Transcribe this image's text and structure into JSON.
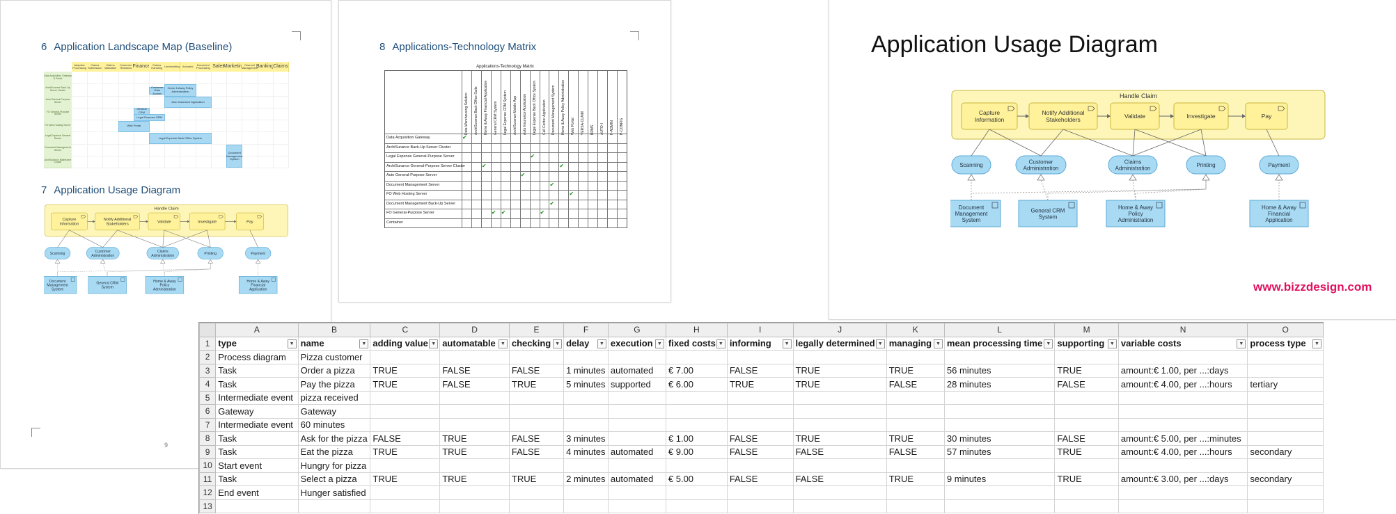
{
  "doc": {
    "page1": {
      "heading6": {
        "num": "6",
        "text": "Application Landscape Map (Baseline)"
      },
      "heading7": {
        "num": "7",
        "text": "Application Usage Diagram"
      },
      "page_number": "9"
    },
    "page2": {
      "heading8": {
        "num": "8",
        "text": "Applications-Technology Matrix"
      }
    },
    "slide": {
      "title": "Application Usage Diagram",
      "watermark": "www.bizzdesign.com"
    }
  },
  "landscape": {
    "columns": [
      "Adaptive Processing",
      "Claims Submission",
      "Claims Validation",
      "Customer Relations",
      "Finance",
      "Claims Handling",
      "Underwriting",
      "Actuarial",
      "Document Processing",
      "Sales",
      "Marketing",
      "Channel Management",
      "Banking",
      "Claims"
    ],
    "rows": [
      "Data Acquisition Gateway & Portal",
      "ArchiSurance Back-Up Server Cluster",
      "Auto General-Purpose Server",
      "FO General-Purpose Server",
      "FO Web Hosting Server",
      "Legal Expense General Server",
      "Document Management Server",
      "ArchiSurance Mainframe Cluster"
    ],
    "apps": [
      "Customer Data Access",
      "Home & Away Policy Administration",
      "Auto Insurance Application",
      "General CRM",
      "Legal Expense CRM",
      "Web Portal",
      "Legal Expense Back Office System",
      "Document Management System"
    ]
  },
  "matrix": {
    "title": "Applications-Technology Matrix",
    "columns": [
      "Data Warehousing Solution",
      "ArchiSurance Back Office Suite",
      "Home & Away Financial Application",
      "General CRM System",
      "Legal Expense CRM System",
      "ArchiSurance Mobile App",
      "Auto Insurance Application",
      "Legal Expense Back Office System",
      "Call Center Application",
      "Document Management System",
      "Home & Away Policy Administration",
      "Web Portal",
      "VERSA-CLAIM",
      "BRMS",
      "AUTO-I",
      "F-ADMIN",
      "P-CONFIG"
    ],
    "rows": [
      "Data Acquisition Gateway",
      "ArchiSurance Back-Up Server Cluster",
      "Legal Expense General-Purpose Server",
      "ArchiSurance General-Purpose Server Cluster",
      "Auto General-Purpose Server",
      "Document Management Server",
      "FO Web Hosting Server",
      "Document Management Back-Up Server",
      "FO General-Purpose Server",
      "Container"
    ],
    "checks": [
      [
        0,
        0
      ],
      [
        2,
        7
      ],
      [
        3,
        2
      ],
      [
        3,
        10
      ],
      [
        4,
        6
      ],
      [
        5,
        9
      ],
      [
        6,
        11
      ],
      [
        7,
        9
      ],
      [
        8,
        3
      ],
      [
        8,
        4
      ],
      [
        8,
        8
      ]
    ],
    "check_glyph": "✔"
  },
  "usage": {
    "group": "Handle Claim",
    "processes": [
      "Capture Information",
      "Notify Additional Stakeholders",
      "Validate",
      "Investigate",
      "Pay"
    ],
    "services": [
      "Scanning",
      "Customer Administration",
      "Claims Administration",
      "Printing",
      "Payment"
    ],
    "components": [
      "Document Management System",
      "General CRM System",
      "Home & Away Policy Administration",
      "Home & Away Financial Application"
    ]
  },
  "sheet": {
    "col_letters": [
      "A",
      "B",
      "C",
      "D",
      "E",
      "F",
      "G",
      "H",
      "I",
      "J",
      "K",
      "L",
      "M",
      "N",
      "O"
    ],
    "row_numbers": [
      "1",
      "2",
      "3",
      "4",
      "5",
      "6",
      "7",
      "8",
      "9",
      "10",
      "11",
      "12",
      "13"
    ],
    "headers": [
      "type",
      "name",
      "adding value",
      "automatable",
      "checking",
      "delay",
      "execution",
      "fixed costs",
      "informing",
      "legally determined",
      "managing",
      "mean processing time",
      "supporting",
      "variable costs",
      "process type"
    ],
    "rows": [
      [
        "Process diagram",
        "Pizza customer",
        "",
        "",
        "",
        "",
        "",
        "",
        "",
        "",
        "",
        "",
        "",
        "",
        ""
      ],
      [
        "Task",
        "Order a pizza",
        "TRUE",
        "FALSE",
        "FALSE",
        "1 minutes",
        "automated",
        "€ 7.00",
        "FALSE",
        "TRUE",
        "TRUE",
        "56 minutes",
        "TRUE",
        "amount:€ 1.00, per ...:days",
        ""
      ],
      [
        "Task",
        "Pay the pizza",
        "TRUE",
        "FALSE",
        "TRUE",
        "5 minutes",
        "supported",
        "€ 6.00",
        "TRUE",
        "TRUE",
        "FALSE",
        "28 minutes",
        "FALSE",
        "amount:€ 4.00, per ...:hours",
        "tertiary"
      ],
      [
        "Intermediate event",
        "pizza received",
        "",
        "",
        "",
        "",
        "",
        "",
        "",
        "",
        "",
        "",
        "",
        "",
        ""
      ],
      [
        "Gateway",
        "Gateway",
        "",
        "",
        "",
        "",
        "",
        "",
        "",
        "",
        "",
        "",
        "",
        "",
        ""
      ],
      [
        "Intermediate event",
        "60 minutes",
        "",
        "",
        "",
        "",
        "",
        "",
        "",
        "",
        "",
        "",
        "",
        "",
        ""
      ],
      [
        "Task",
        "Ask for the pizza",
        "FALSE",
        "TRUE",
        "FALSE",
        "3 minutes",
        "",
        "€ 1.00",
        "FALSE",
        "TRUE",
        "TRUE",
        "30 minutes",
        "FALSE",
        "amount:€ 5.00, per ...:minutes",
        ""
      ],
      [
        "Task",
        "Eat the pizza",
        "TRUE",
        "TRUE",
        "FALSE",
        "4 minutes",
        "automated",
        "€ 9.00",
        "FALSE",
        "FALSE",
        "FALSE",
        "57 minutes",
        "TRUE",
        "amount:€ 4.00, per ...:hours",
        "secondary"
      ],
      [
        "Start event",
        "Hungry for pizza",
        "",
        "",
        "",
        "",
        "",
        "",
        "",
        "",
        "",
        "",
        "",
        "",
        ""
      ],
      [
        "Task",
        "Select a pizza",
        "TRUE",
        "TRUE",
        "TRUE",
        "2 minutes",
        "automated",
        "€ 5.00",
        "FALSE",
        "FALSE",
        "TRUE",
        "9 minutes",
        "TRUE",
        "amount:€ 3.00, per ...:days",
        "secondary"
      ],
      [
        "End event",
        "Hunger satisfied",
        "",
        "",
        "",
        "",
        "",
        "",
        "",
        "",
        "",
        "",
        "",
        "",
        ""
      ],
      [
        "",
        "",
        "",
        "",
        "",
        "",
        "",
        "",
        "",
        "",
        "",
        "",
        "",
        "",
        ""
      ]
    ]
  }
}
